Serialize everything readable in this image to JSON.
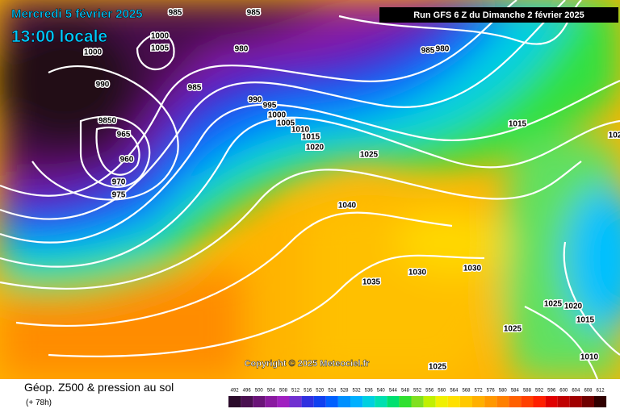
{
  "header": {
    "date": "Mercredi 5 février 2025",
    "time": "13:00 locale",
    "run": "Run GFS 6 Z du Dimanche 2 février 2025"
  },
  "copyright": "Copyright © 2025 Meteociel.fr",
  "isobar_labels": [
    "985",
    "985",
    "1000",
    "1005",
    "1000",
    "980",
    "985",
    "980",
    "990",
    "985",
    "990",
    "995",
    "1000",
    "1005",
    "9850",
    "965",
    "960",
    "970",
    "975",
    "1010",
    "1015",
    "1020",
    "1025",
    "1015",
    "1040",
    "1030",
    "1030",
    "1035",
    "1025",
    "1020",
    "1025",
    "1015",
    "1010",
    "1025",
    "102"
  ],
  "footer": {
    "title": "Géop. Z500 & pression au sol",
    "lead": "(+ 78h)"
  },
  "scale": [
    492,
    496,
    500,
    504,
    508,
    512,
    516,
    520,
    524,
    528,
    532,
    536,
    540,
    544,
    548,
    552,
    556,
    560,
    564,
    568,
    572,
    576,
    580,
    584,
    588,
    592,
    596,
    600,
    604,
    608,
    612
  ]
}
